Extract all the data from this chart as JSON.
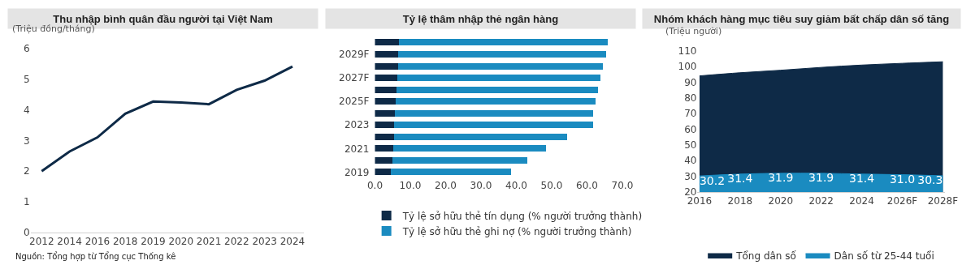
{
  "chart_data": [
    {
      "type": "line",
      "title": "Thu nhập bình quân đầu người tại Việt Nam",
      "ylabel": "(Triệu đồng/tháng)",
      "categories": [
        "2012",
        "2014",
        "2016",
        "2018",
        "2019",
        "2020",
        "2021",
        "2022",
        "2023",
        "2024"
      ],
      "series": [
        {
          "color": "#0e2a47",
          "values": [
            2.0,
            2.64,
            3.1,
            3.87,
            4.27,
            4.24,
            4.18,
            4.65,
            4.95,
            5.41
          ]
        }
      ],
      "ylim": [
        0,
        6
      ],
      "yticks": [
        0,
        1,
        2,
        3,
        4,
        5,
        6
      ],
      "legend": false,
      "marker": "none",
      "line_style": "solid",
      "annotations": [
        "Nguồn: Tổng hợp từ Tổng cục Thống kê"
      ]
    },
    {
      "type": "bar",
      "title": "Tỷ lệ thâm nhập thẻ ngân hàng",
      "orientation": "horizontal",
      "stacked": true,
      "categories": [
        null,
        "2029F",
        null,
        "2027F",
        null,
        "2025F",
        null,
        "2023",
        null,
        "2021",
        null,
        "2019"
      ],
      "series": [
        {
          "name": "Tỷ lệ sở hữu thẻ tín dụng (% người trưởng thành)",
          "color": "#0e2a47",
          "values": [
            6.8,
            6.6,
            6.5,
            6.3,
            6.2,
            5.9,
            5.6,
            5.4,
            5.5,
            5.2,
            5.0,
            4.5
          ]
        },
        {
          "name": "Tỷ lệ sở hữu thẻ ghi nợ (% người trưởng thành)",
          "color": "#1a8bc0",
          "values": [
            59.1,
            58.7,
            58.0,
            57.5,
            57.0,
            56.5,
            56.2,
            56.3,
            48.9,
            43.3,
            38.2,
            34.1
          ]
        }
      ],
      "xlim": [
        0,
        70
      ],
      "xticks": [
        {
          "value": 0,
          "label": "0.0"
        },
        {
          "value": 10,
          "label": "10.0"
        },
        {
          "value": 20,
          "label": "20.0"
        },
        {
          "value": 30,
          "label": "30.0"
        },
        {
          "value": 40,
          "label": "40.0"
        },
        {
          "value": 50,
          "label": "50.0"
        },
        {
          "value": 60,
          "label": "60.0"
        },
        {
          "value": 70,
          "label": "70.0"
        }
      ],
      "legend": "bottom"
    },
    {
      "type": "area",
      "title": "Nhóm khách hàng mục tiêu suy giảm bất chấp dân số tăng",
      "ylabel": "(Triệu người)",
      "categories": [
        "2016",
        "2018",
        "2020",
        "2022",
        "2024",
        "2026F",
        "2028F"
      ],
      "series": [
        {
          "name": "Tổng dân số",
          "color": "#0e2a47",
          "values": [
            94.0,
            96.0,
            97.6,
            99.4,
            100.9,
            102.0,
            103.0
          ]
        },
        {
          "name": "Dân số từ 25-44 tuổi",
          "color": "#1a8bc0",
          "values": [
            30.2,
            31.4,
            31.9,
            31.9,
            31.4,
            31.0,
            30.3
          ],
          "value_labels": [
            "30.2",
            "31.4",
            "31.9",
            "31.9",
            "31.4",
            "31.0",
            "30.3"
          ]
        }
      ],
      "ylim": [
        20,
        110
      ],
      "yticks": [
        20,
        30,
        40,
        50,
        60,
        70,
        80,
        90,
        100,
        110
      ],
      "legend": "bottom"
    }
  ]
}
